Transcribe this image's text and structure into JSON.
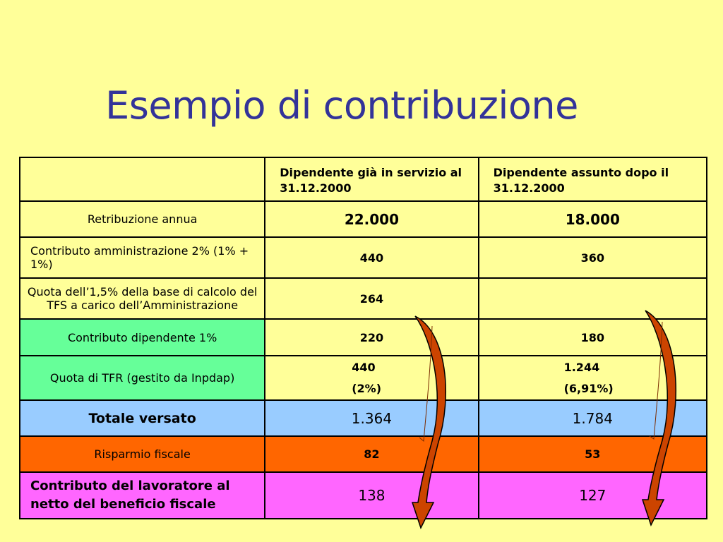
{
  "title": "Esempio di contribuzione",
  "colors": {
    "background": "#ffff99",
    "title": "#333399",
    "green": "#66ff99",
    "blue": "#99ccff",
    "orange": "#ff6600",
    "pink": "#ff66ff",
    "arrow_fill": "#cc4400"
  },
  "table": {
    "headers": [
      "",
      "Dipendente già in servizio al 31.12.2000",
      "Dipendente assunto dopo il 31.12.2000"
    ],
    "rows": [
      {
        "label": "Retribuzione annua",
        "v1": "22.000",
        "v2": "18.000"
      },
      {
        "label": "Contributo amministrazione 2% (1% + 1%)",
        "v1": "440",
        "v2": "360"
      },
      {
        "label": "Quota dell’1,5% della base di calcolo del TFS a carico dell’Amministrazione",
        "v1": "264",
        "v2": ""
      },
      {
        "label": "Contributo dipendente 1%",
        "v1": "220",
        "v2": "180"
      },
      {
        "label": "Quota di TFR (gestito da Inpdap)",
        "v1": "440",
        "v1_sub": "(2%)",
        "v2": "1.244",
        "v2_sub": "(6,91%)"
      },
      {
        "label": "Totale versato",
        "v1": "1.364",
        "v2": "1.784"
      },
      {
        "label": "Risparmio fiscale",
        "v1": "82",
        "v2": "53"
      },
      {
        "label": "Contributo del lavoratore al netto del beneficio fiscale",
        "v1": "138",
        "v2": "127"
      }
    ]
  }
}
